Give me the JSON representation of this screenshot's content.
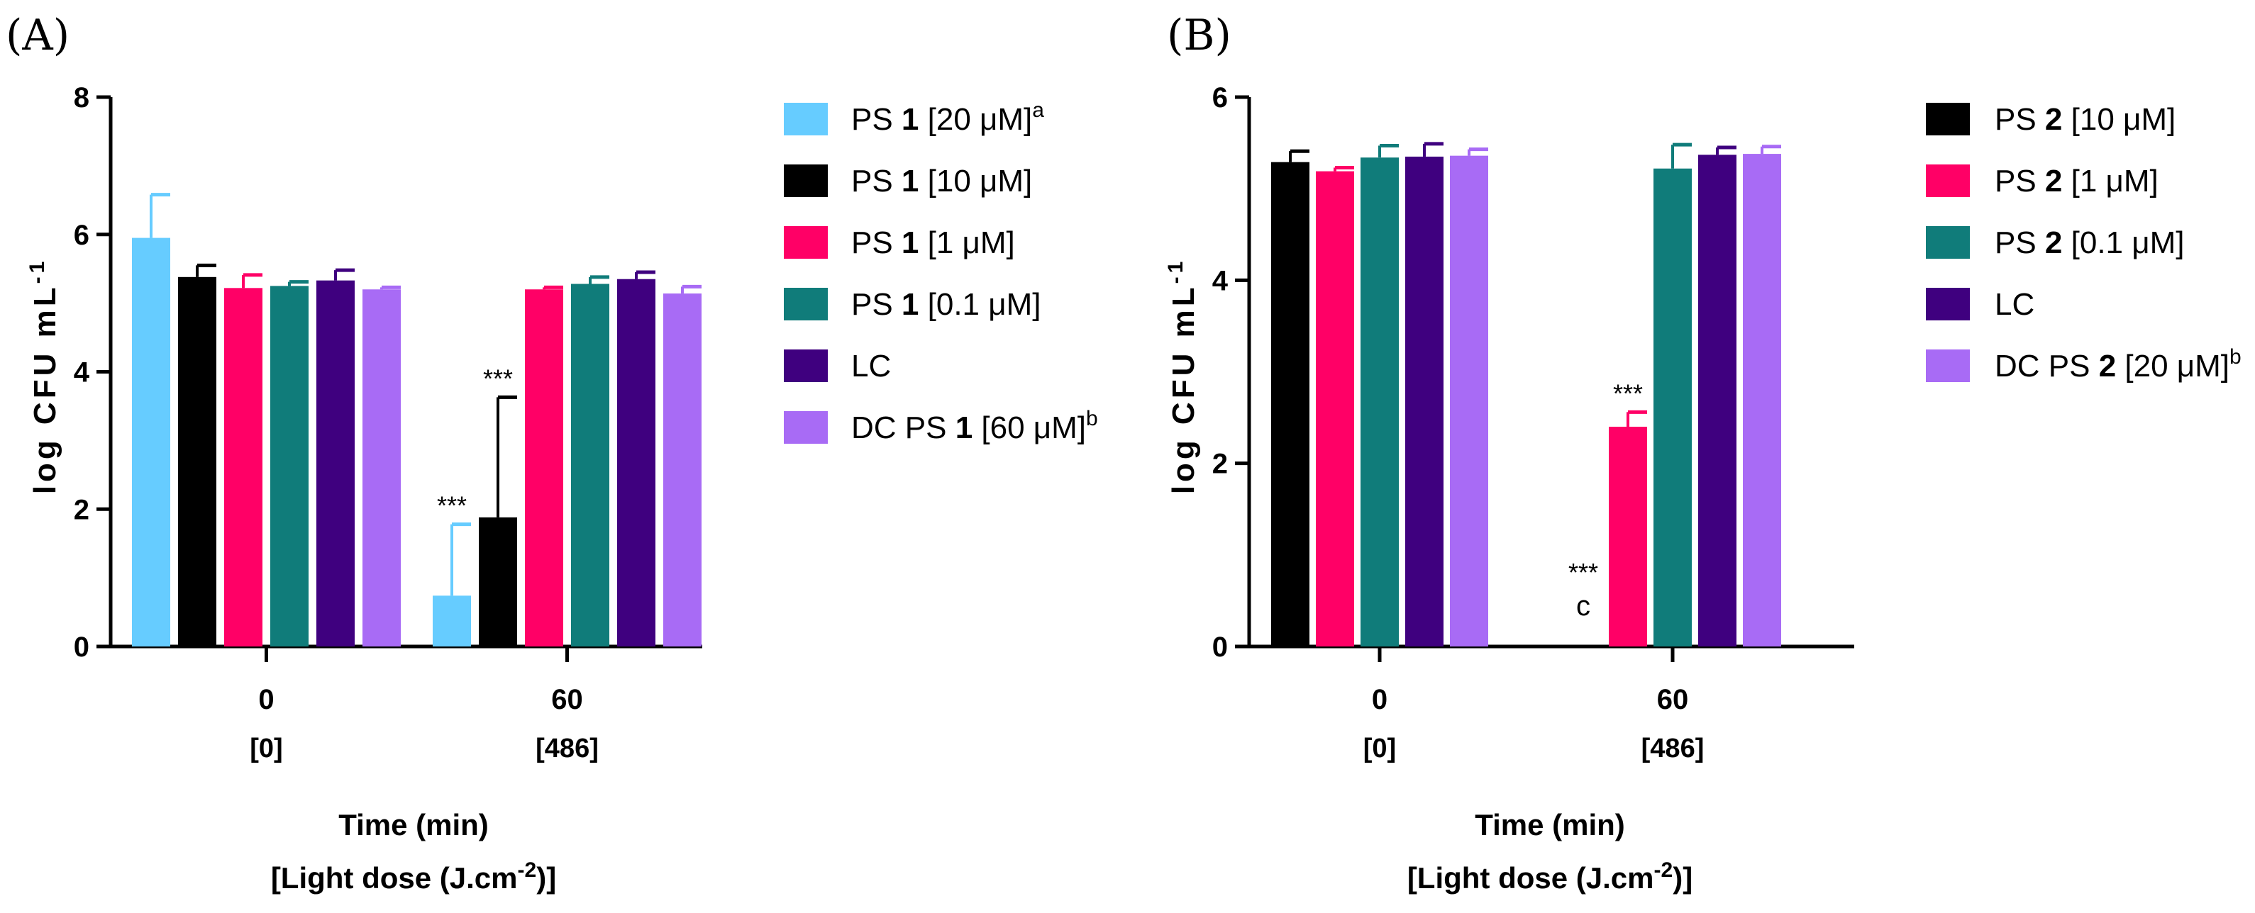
{
  "chart_data": [
    {
      "panel_label": "(A)",
      "type": "bar",
      "ylabel": "log CFU mL",
      "ylabel_sup": "-1",
      "ylim": [
        0,
        8
      ],
      "yticks": [
        "0",
        "2",
        "4",
        "6",
        "8"
      ],
      "xlabel_line1": "Time (min)",
      "xlabel_line2": "[Light dose (J.cm",
      "xlabel_line2_sup": "-2",
      "xlabel_line2_end": ")]",
      "categories": [
        "0",
        "60"
      ],
      "category_sublabels": [
        "[0]",
        "[486]"
      ],
      "series": [
        {
          "name": "PS 1 [20 μM]a",
          "legend_pre": "PS ",
          "legend_bold": "1",
          "legend_post": " [20 μM]",
          "legend_sup": "a",
          "color": "#66CCFF",
          "values": [
            5.95,
            0.74
          ],
          "errors": [
            0.63,
            1.04
          ]
        },
        {
          "name": "PS 1 [10 μM]",
          "legend_pre": "PS ",
          "legend_bold": "1",
          "legend_post": " [10 μM]",
          "legend_sup": "",
          "color": "#000000",
          "values": [
            5.38,
            1.88
          ],
          "errors": [
            0.17,
            1.75
          ]
        },
        {
          "name": "PS 1 [1 μM]",
          "legend_pre": "PS ",
          "legend_bold": "1",
          "legend_post": " [1 μM]",
          "legend_sup": "",
          "color": "#FF0066",
          "values": [
            5.22,
            5.2
          ],
          "errors": [
            0.19,
            0.03
          ]
        },
        {
          "name": "PS 1 [0.1 μM]",
          "legend_pre": "PS ",
          "legend_bold": "1",
          "legend_post": " [0.1 μM]",
          "legend_sup": "",
          "color": "#107C7A",
          "values": [
            5.25,
            5.28
          ],
          "errors": [
            0.06,
            0.1
          ]
        },
        {
          "name": "LC",
          "legend_pre": "LC",
          "legend_bold": "",
          "legend_post": "",
          "legend_sup": "",
          "color": "#3F007F",
          "values": [
            5.33,
            5.35
          ],
          "errors": [
            0.15,
            0.1
          ]
        },
        {
          "name": "DC PS 1 [60 μM]b",
          "legend_pre": "DC PS ",
          "legend_bold": "1",
          "legend_post": " [60 μM]",
          "legend_sup": "b",
          "color": "#A86BF5",
          "values": [
            5.2,
            5.14
          ],
          "errors": [
            0.03,
            0.1
          ]
        }
      ],
      "annotations": [
        {
          "series": 0,
          "category": 1,
          "text": "***"
        },
        {
          "series": 1,
          "category": 1,
          "text": "***"
        }
      ]
    },
    {
      "panel_label": "(B)",
      "type": "bar",
      "ylabel": "log CFU mL",
      "ylabel_sup": "-1",
      "ylim": [
        0,
        6
      ],
      "yticks": [
        "0",
        "2",
        "4",
        "6"
      ],
      "xlabel_line1": "Time (min)",
      "xlabel_line2": "[Light dose (J.cm",
      "xlabel_line2_sup": "-2",
      "xlabel_line2_end": ")]",
      "categories": [
        "0",
        "60"
      ],
      "category_sublabels": [
        "[0]",
        "[486]"
      ],
      "series": [
        {
          "name": "PS 2 [10 μM]",
          "legend_pre": "PS ",
          "legend_bold": "2",
          "legend_post": " [10 μM]",
          "legend_sup": "",
          "color": "#000000",
          "values": [
            5.29,
            0
          ],
          "errors": [
            0.12,
            0
          ]
        },
        {
          "name": "PS 2 [1 μM]",
          "legend_pre": "PS ",
          "legend_bold": "2",
          "legend_post": " [1 μM]",
          "legend_sup": "",
          "color": "#FF0066",
          "values": [
            5.19,
            2.4
          ],
          "errors": [
            0.04,
            0.16
          ]
        },
        {
          "name": "PS 2 [0.1 μM]",
          "legend_pre": "PS ",
          "legend_bold": "2",
          "legend_post": " [0.1 μM]",
          "legend_sup": "",
          "color": "#107C7A",
          "values": [
            5.34,
            5.22
          ],
          "errors": [
            0.13,
            0.26
          ]
        },
        {
          "name": "LC",
          "legend_pre": "LC",
          "legend_bold": "",
          "legend_post": "",
          "legend_sup": "",
          "color": "#3F007F",
          "values": [
            5.35,
            5.37
          ],
          "errors": [
            0.14,
            0.08
          ]
        },
        {
          "name": "DC PS 2 [20 μM]b",
          "legend_pre": "DC PS ",
          "legend_bold": "2",
          "legend_post": " [20 μM]",
          "legend_sup": "b",
          "color": "#A86BF5",
          "values": [
            5.36,
            5.38
          ],
          "errors": [
            0.07,
            0.08
          ]
        }
      ],
      "annotations": [
        {
          "series": 0,
          "category": 1,
          "text": "***",
          "subtext": "c"
        },
        {
          "series": 1,
          "category": 1,
          "text": "***"
        }
      ]
    }
  ]
}
